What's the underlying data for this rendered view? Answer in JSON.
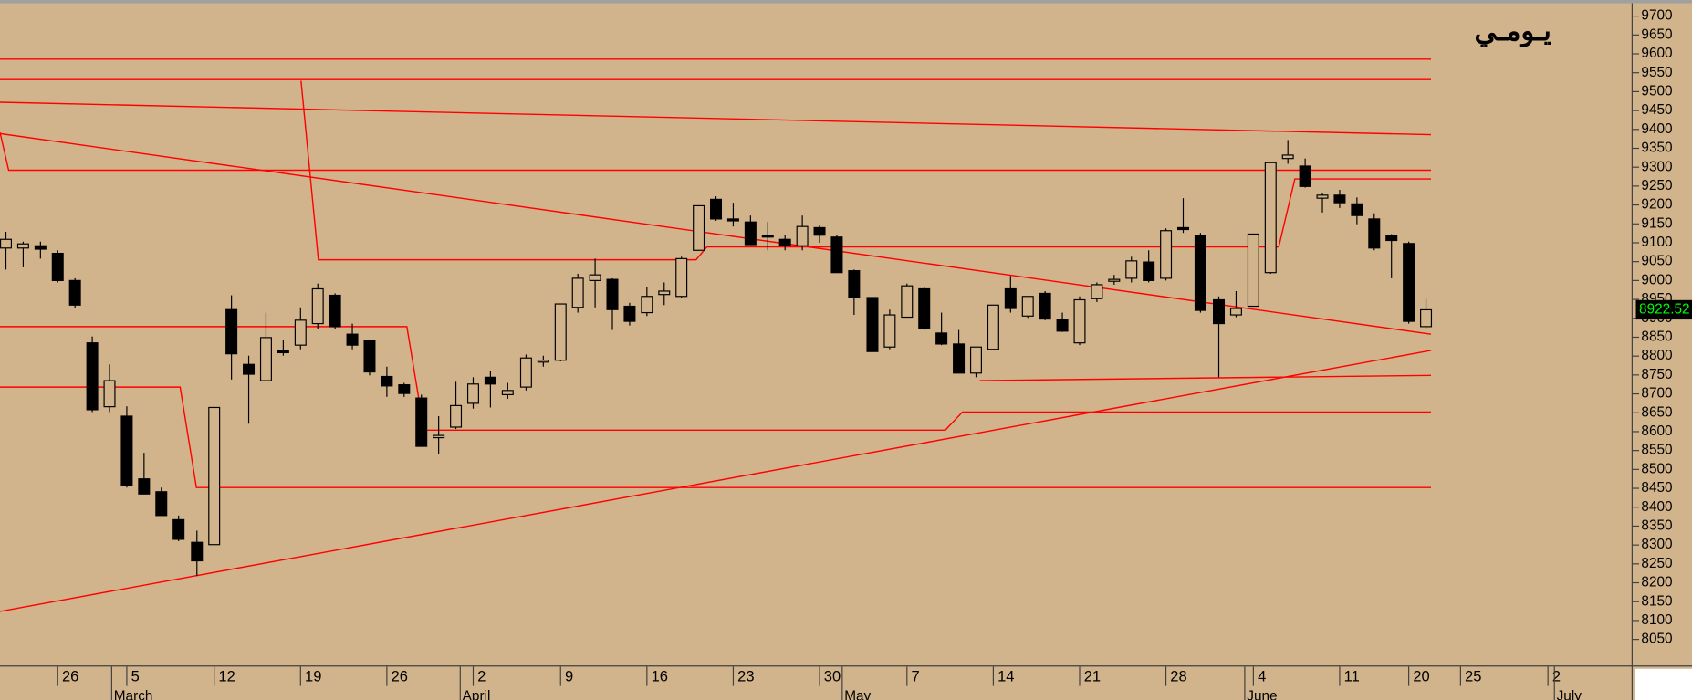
{
  "chart_data": {
    "type": "candlestick",
    "title": "يـومـي",
    "xlim": [
      -0.31,
      93.89
    ],
    "ylim": [
      7981,
      9734
    ],
    "yticks": [
      8050,
      8100,
      8150,
      8200,
      8250,
      8300,
      8350,
      8400,
      8450,
      8500,
      8550,
      8600,
      8650,
      8700,
      8750,
      8800,
      8850,
      8900,
      8950,
      9000,
      9050,
      9100,
      9150,
      9200,
      9250,
      9300,
      9350,
      9400,
      9450,
      9500,
      9550,
      9600,
      9650,
      9700
    ],
    "xticks": [
      {
        "value": 3,
        "label": "26"
      },
      {
        "value": 7,
        "label": "5"
      },
      {
        "value": 12,
        "label": "12"
      },
      {
        "value": 17,
        "label": "19"
      },
      {
        "value": 22,
        "label": "26"
      },
      {
        "value": 27,
        "label": "2"
      },
      {
        "value": 32,
        "label": "9"
      },
      {
        "value": 37,
        "label": "16"
      },
      {
        "value": 42,
        "label": "23"
      },
      {
        "value": 47,
        "label": "30"
      },
      {
        "value": 52,
        "label": "7"
      },
      {
        "value": 57,
        "label": "14"
      },
      {
        "value": 62,
        "label": "21"
      },
      {
        "value": 67,
        "label": "28"
      },
      {
        "value": 72,
        "label": "4"
      },
      {
        "value": 77,
        "label": "11"
      },
      {
        "value": 81,
        "label": "20"
      },
      {
        "value": 84,
        "label": "25"
      },
      {
        "value": 89,
        "label": "2"
      }
    ],
    "months": [
      {
        "value": 6.1,
        "label": "March"
      },
      {
        "value": 26.2,
        "label": "April"
      },
      {
        "value": 48.3,
        "label": "May"
      },
      {
        "value": 71.5,
        "label": "June"
      },
      {
        "value": 89.4,
        "label": "July"
      }
    ],
    "last_price": 8922.52,
    "up_color": "#d2b48c",
    "down_color": "#000000",
    "line_color": "#ff0000",
    "open": [
      9086,
      9086,
      9092,
      9072,
      9000,
      8835,
      8666,
      8641,
      8475,
      8441,
      8367,
      8307,
      8301,
      8923,
      8778,
      8735,
      8815,
      8829,
      8886,
      8961,
      8858,
      8841,
      8746,
      8724,
      8689,
      8584,
      8612,
      8675,
      8744,
      8698,
      8718,
      8784,
      8789,
      8929,
      9000,
      9003,
      8932,
      8915,
      8963,
      8958,
      9080,
      9215,
      9163,
      9155,
      9120,
      9109,
      9092,
      9140,
      9115,
      9026,
      8955,
      8824,
      8903,
      8978,
      8861,
      8832,
      8755,
      8818,
      8978,
      8906,
      8966,
      8898,
      8835,
      8952,
      8998,
      9006,
      9049,
      9006,
      9140,
      9120,
      8949,
      8909,
      8932,
      9021,
      9323,
      9303,
      9218,
      9226,
      9203,
      9163,
      9118,
      9098,
      8878
    ],
    "high": [
      9129,
      9103,
      9103,
      9080,
      9006,
      8852,
      8778,
      8667,
      8544,
      8452,
      8378,
      8338,
      8664,
      8961,
      8801,
      8915,
      8843,
      8929,
      8992,
      8966,
      8886,
      8843,
      8772,
      8729,
      8698,
      8641,
      8732,
      8744,
      8761,
      8729,
      8804,
      8801,
      8938,
      9018,
      9058,
      9006,
      8941,
      8983,
      8995,
      9063,
      9198,
      9223,
      9206,
      9172,
      9155,
      9120,
      9172,
      9146,
      9120,
      9029,
      8955,
      8923,
      8992,
      8983,
      8915,
      8869,
      8824,
      8935,
      9012,
      8958,
      8972,
      8915,
      8958,
      8995,
      9015,
      9063,
      9080,
      9138,
      9218,
      9126,
      8958,
      8972,
      9123,
      9315,
      9372,
      9323,
      9232,
      9240,
      9220,
      9178,
      9123,
      9103,
      8952
    ],
    "low": [
      9029,
      9035,
      9058,
      8995,
      8926,
      8652,
      8652,
      8452,
      8435,
      8378,
      8310,
      8218,
      8301,
      8738,
      8621,
      8735,
      8801,
      8818,
      8872,
      8872,
      8818,
      8749,
      8692,
      8692,
      8561,
      8541,
      8607,
      8661,
      8664,
      8687,
      8709,
      8772,
      8786,
      8915,
      8929,
      8869,
      8881,
      8906,
      8935,
      8955,
      9080,
      9158,
      9143,
      9095,
      9080,
      9080,
      9080,
      9100,
      9021,
      8909,
      8812,
      8818,
      8903,
      8869,
      8829,
      8755,
      8744,
      8815,
      8915,
      8901,
      8895,
      8864,
      8829,
      8943,
      8989,
      8995,
      8995,
      9000,
      9126,
      8915,
      8744,
      8903,
      8932,
      9018,
      9309,
      9246,
      9180,
      9192,
      9149,
      9080,
      9006,
      8886,
      8872
    ],
    "close": [
      9109,
      9097,
      9083,
      9000,
      8935,
      8658,
      8735,
      8458,
      8435,
      8378,
      8315,
      8258,
      8664,
      8806,
      8752,
      8849,
      8809,
      8895,
      8978,
      8878,
      8829,
      8758,
      8721,
      8701,
      8561,
      8590,
      8669,
      8726,
      8726,
      8709,
      8795,
      8789,
      8938,
      9006,
      9015,
      8923,
      8892,
      8958,
      8972,
      9058,
      9198,
      9163,
      9158,
      9095,
      9115,
      9092,
      9143,
      9120,
      9021,
      8955,
      8812,
      8909,
      8986,
      8872,
      8832,
      8755,
      8824,
      8935,
      8926,
      8958,
      8898,
      8866,
      8949,
      8989,
      9003,
      9052,
      9000,
      9132,
      9135,
      8921,
      8886,
      8926,
      9123,
      9312,
      9332,
      9249,
      9226,
      9206,
      9172,
      9086,
      9106,
      8892,
      8922.52
    ],
    "trendlines": [
      {
        "x": [
          -0.31,
          82.31
        ],
        "y": [
          9586,
          9586
        ]
      },
      {
        "x": [
          -0.31,
          82.31
        ],
        "y": [
          9532,
          9532
        ]
      },
      {
        "x": [
          -0.31,
          82.31
        ],
        "y": [
          9472,
          9386
        ]
      },
      {
        "x": [
          -0.31,
          0.19,
          82.31
        ],
        "y": [
          9392,
          9292,
          9292
        ]
      },
      {
        "x": [
          17.07,
          18.07,
          39.88,
          40.5,
          73.52,
          74.45,
          82.31
        ],
        "y": [
          9529,
          9055,
          9055,
          9089,
          9089,
          9269,
          9269
        ]
      },
      {
        "x": [
          -0.31,
          82.31
        ],
        "y": [
          9389,
          8858
        ]
      },
      {
        "x": [
          -0.31,
          23.18,
          24.17,
          54.27,
          55.26,
          82.31
        ],
        "y": [
          8878,
          8878,
          8604,
          8604,
          8652,
          8652
        ]
      },
      {
        "x": [
          -0.31,
          10.09,
          11.03,
          82.31
        ],
        "y": [
          8718,
          8718,
          8452,
          8452
        ]
      },
      {
        "x": [
          -0.31,
          82.31
        ],
        "y": [
          8124,
          8815
        ]
      },
      {
        "x": [
          56.26,
          82.31
        ],
        "y": [
          8735,
          8749
        ]
      }
    ]
  }
}
